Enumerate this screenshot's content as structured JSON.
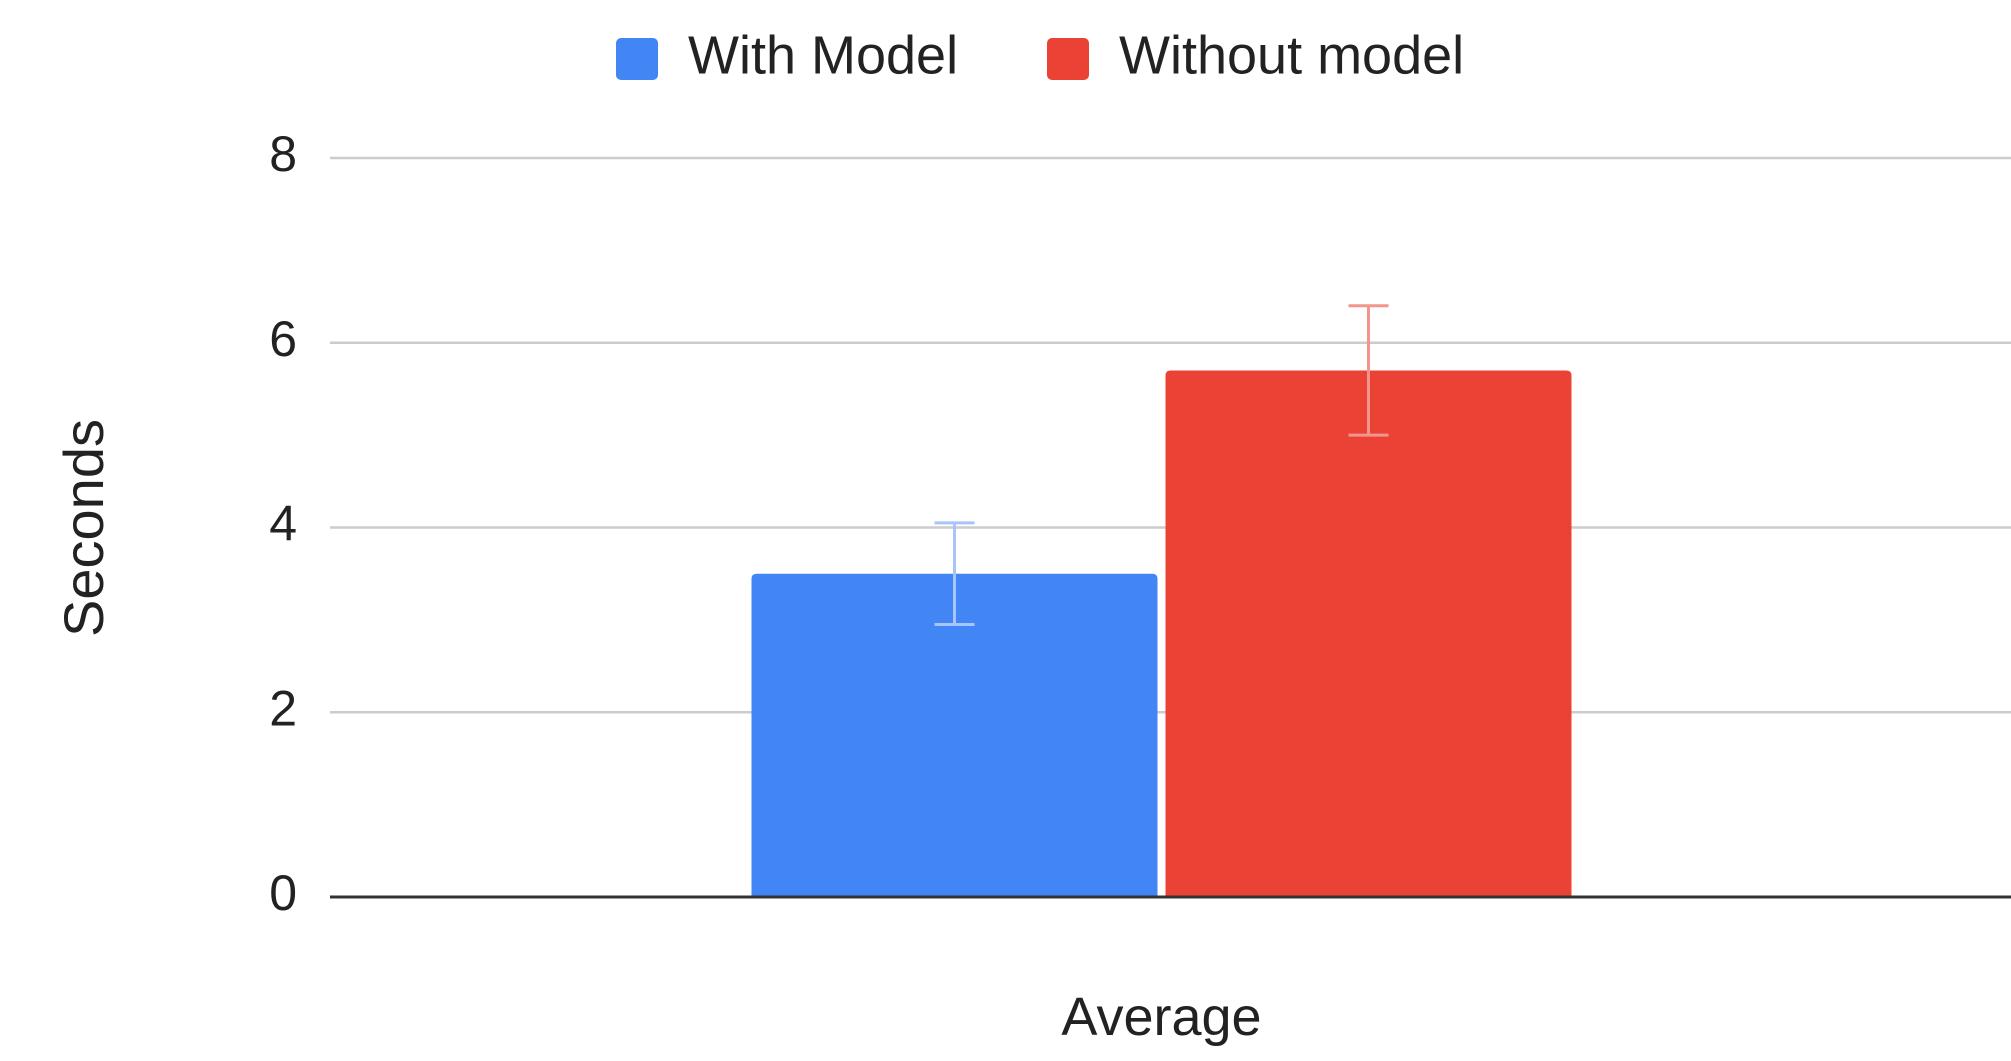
{
  "chart_data": {
    "type": "bar",
    "categories": [
      "Average"
    ],
    "xlabel": "",
    "ylabel": "Seconds",
    "ylim": [
      0,
      8
    ],
    "yticks": [
      0,
      2,
      4,
      6,
      8
    ],
    "grid": true,
    "legend_position": "top",
    "series": [
      {
        "name": "With Model",
        "color": "#4285F4",
        "error_color": "#A7C5FA",
        "values": [
          3.5
        ],
        "error_low": [
          2.95
        ],
        "error_high": [
          4.05
        ]
      },
      {
        "name": "Without model",
        "color": "#EA4335",
        "error_color": "#F2958C",
        "values": [
          5.7
        ],
        "error_low": [
          5.0
        ],
        "error_high": [
          6.4
        ]
      }
    ]
  }
}
